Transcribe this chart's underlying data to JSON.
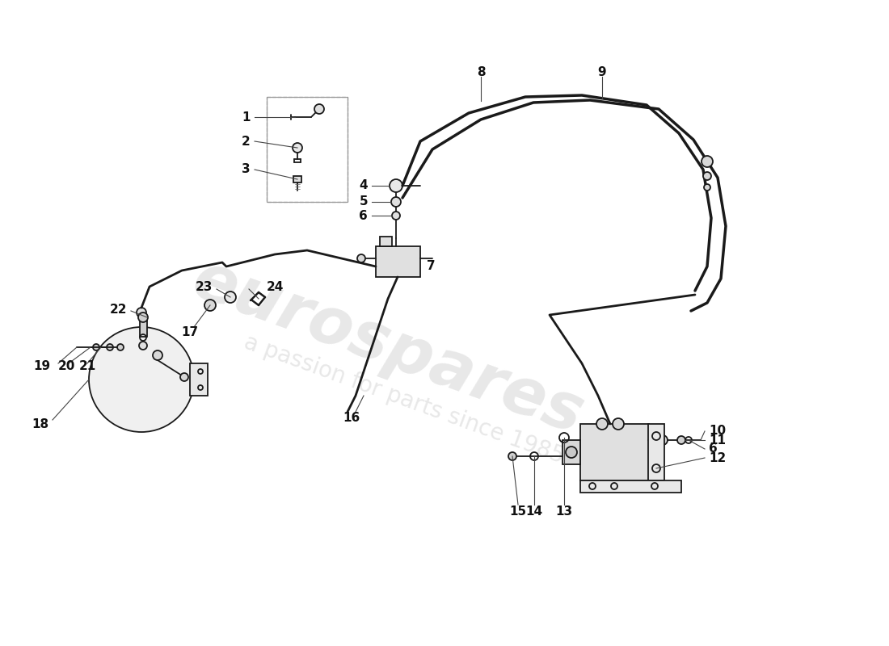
{
  "bg_color": "#ffffff",
  "lc": "#1a1a1a",
  "wm1": "eurospares",
  "wm2": "a passion for parts since 1985",
  "wm_color": "#cccccc",
  "wm1_size": 58,
  "wm2_size": 20,
  "label_size": 11,
  "lw_pipe": 2.5,
  "lw_draw": 1.3,
  "lw_thin": 0.9
}
